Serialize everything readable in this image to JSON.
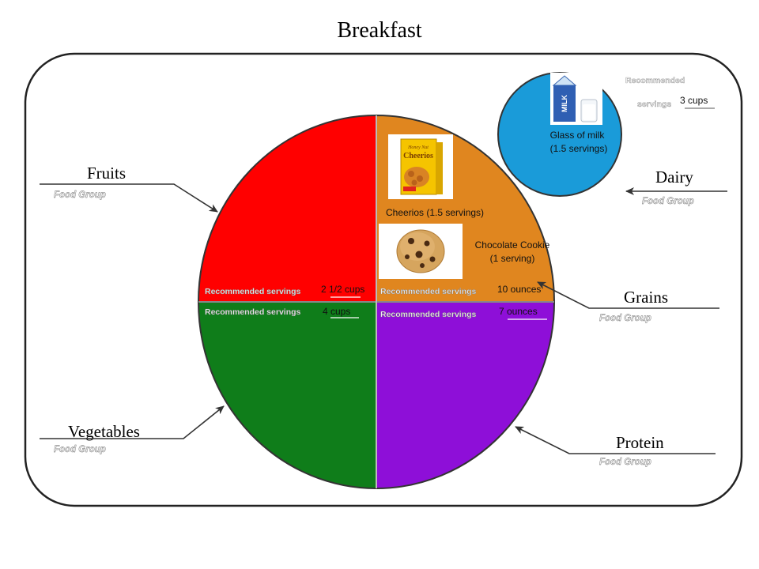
{
  "title": "Breakfast",
  "colors": {
    "fruits": "#ff0000",
    "grains": "#e0861f",
    "vegetables": "#0f7d1a",
    "protein": "#8e0fd8",
    "dairy": "#1a9bd9",
    "outline": "#333333"
  },
  "recommended_label": "Recommended servings",
  "recommended_label_line1": "Recommended",
  "recommended_label_line2": "servings",
  "food_group_label": "Food Group",
  "groups": {
    "fruits": {
      "name": "Fruits",
      "recommended": "2 1/2 cups"
    },
    "grains": {
      "name": "Grains",
      "recommended": "10 ounces"
    },
    "vegetables": {
      "name": "Vegetables",
      "recommended": "4 cups"
    },
    "protein": {
      "name": "Protein",
      "recommended": "7 ounces"
    },
    "dairy": {
      "name": "Dairy",
      "recommended": "3 cups"
    }
  },
  "foods": {
    "cheerios": {
      "label": "Cheerios (1.5 servings)",
      "box_brand": "Cheerios",
      "box_flavor": "Honey Nut",
      "icon": "cereal-box-icon"
    },
    "cookie": {
      "label_line1": "Chocolate Cookie",
      "label_line2": "(1 serving)",
      "icon": "cookie-icon"
    },
    "milk": {
      "label_line1": "Glass of milk",
      "label_line2": "(1.5 servings)",
      "carton_text": "MILK",
      "icon": "milk-carton-icon"
    }
  }
}
